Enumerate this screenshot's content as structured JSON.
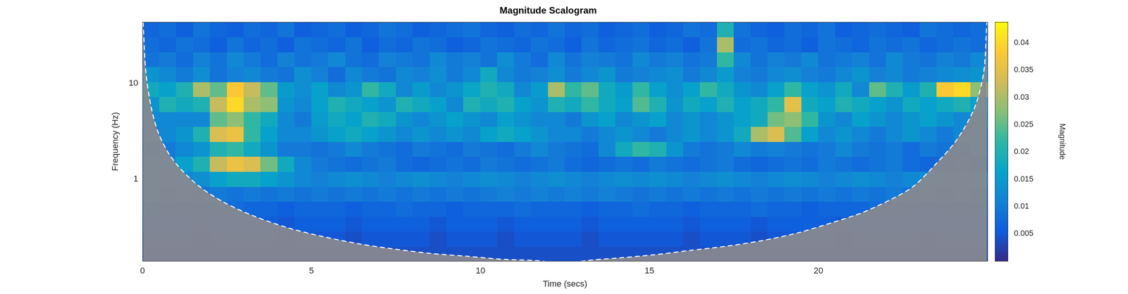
{
  "chart_data": {
    "type": "heatmap",
    "title": "Magnitude Scalogram",
    "x_label": "Time (secs)",
    "y_label": "Frequency (Hz)",
    "xlim": [
      0,
      25
    ],
    "xticks": [
      0,
      5,
      10,
      15,
      20
    ],
    "ylim": [
      0.139,
      43.8
    ],
    "yticks": [
      1,
      10
    ],
    "log": "y",
    "grid": false,
    "x_edges": [
      0,
      0.5,
      1,
      1.5,
      2,
      2.5,
      3,
      3.5,
      4,
      4.5,
      5,
      5.5,
      6,
      6.5,
      7,
      7.5,
      8,
      8.5,
      9,
      9.5,
      10,
      10.5,
      11,
      11.5,
      12,
      12.5,
      13,
      13.5,
      14,
      14.5,
      15,
      15.5,
      16,
      16.5,
      17,
      17.5,
      18,
      18.5,
      19,
      19.5,
      20,
      20.5,
      21,
      21.5,
      22,
      22.5,
      23,
      23.5,
      24,
      24.5,
      25
    ],
    "y_edges": [
      0.139,
      0.199,
      0.285,
      0.409,
      0.586,
      0.839,
      1.202,
      1.723,
      2.468,
      3.536,
      5.066,
      7.258,
      10.4,
      14.9,
      21.35,
      30.58,
      43.8
    ],
    "cells": [
      [
        0.004,
        0.004,
        0.004,
        0.004,
        0.004,
        0.004,
        0.004,
        0.004,
        0.004,
        0.004,
        0.004,
        0.004,
        0.004,
        0.004,
        0.004,
        0.004,
        0.004,
        0.004,
        0.004,
        0.004,
        0.004,
        0.004,
        0.004,
        0.004,
        0.004,
        0.004,
        0.004,
        0.004,
        0.004,
        0.004,
        0.004,
        0.004,
        0.004,
        0.004,
        0.004,
        0.004,
        0.004,
        0.004,
        0.004,
        0.004,
        0.004,
        0.004,
        0.004,
        0.004,
        0.004,
        0.004,
        0.004,
        0.004,
        0.004,
        0.004
      ],
      [
        0.005,
        0.005,
        0.005,
        0.004,
        0.005,
        0.005,
        0.005,
        0.005,
        0.004,
        0.005,
        0.005,
        0.005,
        0.004,
        0.005,
        0.005,
        0.005,
        0.005,
        0.004,
        0.005,
        0.005,
        0.005,
        0.004,
        0.005,
        0.005,
        0.005,
        0.005,
        0.004,
        0.005,
        0.005,
        0.005,
        0.005,
        0.005,
        0.004,
        0.005,
        0.005,
        0.005,
        0.004,
        0.005,
        0.005,
        0.005,
        0.005,
        0.004,
        0.005,
        0.005,
        0.005,
        0.005,
        0.004,
        0.005,
        0.005,
        0.005
      ],
      [
        0.006,
        0.006,
        0.006,
        0.005,
        0.006,
        0.006,
        0.006,
        0.006,
        0.005,
        0.006,
        0.006,
        0.006,
        0.005,
        0.006,
        0.006,
        0.006,
        0.006,
        0.005,
        0.006,
        0.006,
        0.006,
        0.005,
        0.006,
        0.006,
        0.006,
        0.006,
        0.005,
        0.006,
        0.006,
        0.006,
        0.006,
        0.006,
        0.005,
        0.006,
        0.006,
        0.006,
        0.005,
        0.006,
        0.006,
        0.006,
        0.006,
        0.005,
        0.006,
        0.006,
        0.006,
        0.006,
        0.005,
        0.006,
        0.006,
        0.006
      ],
      [
        0.007,
        0.007,
        0.008,
        0.007,
        0.007,
        0.008,
        0.007,
        0.007,
        0.006,
        0.007,
        0.007,
        0.007,
        0.006,
        0.007,
        0.007,
        0.008,
        0.007,
        0.007,
        0.006,
        0.007,
        0.007,
        0.007,
        0.008,
        0.007,
        0.007,
        0.007,
        0.006,
        0.007,
        0.007,
        0.008,
        0.007,
        0.007,
        0.006,
        0.007,
        0.007,
        0.007,
        0.008,
        0.007,
        0.007,
        0.006,
        0.007,
        0.007,
        0.007,
        0.008,
        0.007,
        0.007,
        0.006,
        0.007,
        0.007,
        0.007
      ],
      [
        0.01,
        0.009,
        0.01,
        0.009,
        0.01,
        0.009,
        0.01,
        0.009,
        0.01,
        0.009,
        0.01,
        0.009,
        0.01,
        0.009,
        0.01,
        0.009,
        0.01,
        0.009,
        0.01,
        0.009,
        0.01,
        0.011,
        0.01,
        0.011,
        0.01,
        0.011,
        0.01,
        0.011,
        0.01,
        0.009,
        0.01,
        0.009,
        0.01,
        0.009,
        0.01,
        0.009,
        0.01,
        0.009,
        0.01,
        0.009,
        0.01,
        0.009,
        0.01,
        0.009,
        0.01,
        0.009,
        0.01,
        0.009,
        0.01,
        0.009
      ],
      [
        0.01,
        0.011,
        0.012,
        0.013,
        0.016,
        0.018,
        0.018,
        0.016,
        0.014,
        0.012,
        0.011,
        0.012,
        0.013,
        0.012,
        0.011,
        0.012,
        0.013,
        0.012,
        0.011,
        0.012,
        0.013,
        0.012,
        0.011,
        0.012,
        0.013,
        0.012,
        0.011,
        0.012,
        0.013,
        0.012,
        0.013,
        0.012,
        0.011,
        0.012,
        0.013,
        0.012,
        0.011,
        0.012,
        0.013,
        0.012,
        0.011,
        0.012,
        0.013,
        0.012,
        0.011,
        0.012,
        0.013,
        0.012,
        0.011,
        0.012
      ],
      [
        0.01,
        0.012,
        0.016,
        0.02,
        0.032,
        0.036,
        0.034,
        0.026,
        0.018,
        0.012,
        0.01,
        0.009,
        0.008,
        0.009,
        0.01,
        0.008,
        0.007,
        0.008,
        0.009,
        0.008,
        0.01,
        0.009,
        0.008,
        0.009,
        0.01,
        0.008,
        0.007,
        0.008,
        0.009,
        0.008,
        0.01,
        0.009,
        0.008,
        0.009,
        0.01,
        0.008,
        0.007,
        0.008,
        0.009,
        0.008,
        0.01,
        0.009,
        0.008,
        0.009,
        0.01,
        0.008,
        0.007,
        0.008,
        0.009,
        0.008
      ],
      [
        0.008,
        0.01,
        0.012,
        0.014,
        0.02,
        0.022,
        0.018,
        0.014,
        0.01,
        0.01,
        0.009,
        0.01,
        0.012,
        0.01,
        0.009,
        0.008,
        0.01,
        0.009,
        0.008,
        0.01,
        0.009,
        0.008,
        0.01,
        0.012,
        0.01,
        0.009,
        0.008,
        0.012,
        0.018,
        0.022,
        0.02,
        0.014,
        0.01,
        0.009,
        0.01,
        0.012,
        0.01,
        0.011,
        0.01,
        0.009,
        0.01,
        0.012,
        0.01,
        0.009,
        0.01,
        0.008,
        0.01,
        0.009,
        0.008,
        0.01
      ],
      [
        0.01,
        0.012,
        0.014,
        0.02,
        0.034,
        0.036,
        0.022,
        0.016,
        0.012,
        0.012,
        0.014,
        0.016,
        0.018,
        0.016,
        0.014,
        0.012,
        0.014,
        0.012,
        0.014,
        0.012,
        0.016,
        0.018,
        0.016,
        0.014,
        0.012,
        0.012,
        0.01,
        0.012,
        0.014,
        0.012,
        0.01,
        0.012,
        0.014,
        0.012,
        0.014,
        0.018,
        0.03,
        0.034,
        0.024,
        0.016,
        0.012,
        0.014,
        0.012,
        0.01,
        0.012,
        0.014,
        0.012,
        0.01,
        0.012,
        0.01
      ],
      [
        0.012,
        0.012,
        0.012,
        0.012,
        0.025,
        0.028,
        0.022,
        0.018,
        0.012,
        0.01,
        0.015,
        0.018,
        0.016,
        0.02,
        0.018,
        0.014,
        0.012,
        0.014,
        0.016,
        0.014,
        0.012,
        0.016,
        0.014,
        0.012,
        0.012,
        0.01,
        0.014,
        0.016,
        0.012,
        0.014,
        0.016,
        0.012,
        0.014,
        0.012,
        0.014,
        0.016,
        0.018,
        0.026,
        0.028,
        0.022,
        0.014,
        0.012,
        0.016,
        0.014,
        0.012,
        0.014,
        0.016,
        0.014,
        0.012,
        0.014
      ],
      [
        0.014,
        0.02,
        0.018,
        0.02,
        0.032,
        0.04,
        0.03,
        0.028,
        0.014,
        0.012,
        0.016,
        0.02,
        0.018,
        0.016,
        0.014,
        0.02,
        0.018,
        0.016,
        0.012,
        0.02,
        0.018,
        0.02,
        0.016,
        0.014,
        0.02,
        0.018,
        0.022,
        0.018,
        0.016,
        0.024,
        0.02,
        0.014,
        0.018,
        0.016,
        0.02,
        0.016,
        0.018,
        0.022,
        0.035,
        0.018,
        0.016,
        0.02,
        0.018,
        0.016,
        0.014,
        0.018,
        0.016,
        0.018,
        0.02,
        0.016
      ],
      [
        0.018,
        0.016,
        0.02,
        0.03,
        0.025,
        0.038,
        0.032,
        0.025,
        0.015,
        0.013,
        0.016,
        0.012,
        0.014,
        0.022,
        0.018,
        0.012,
        0.015,
        0.012,
        0.014,
        0.017,
        0.02,
        0.018,
        0.012,
        0.015,
        0.03,
        0.022,
        0.025,
        0.018,
        0.015,
        0.022,
        0.016,
        0.013,
        0.016,
        0.022,
        0.018,
        0.014,
        0.012,
        0.016,
        0.022,
        0.016,
        0.014,
        0.018,
        0.012,
        0.025,
        0.02,
        0.015,
        0.02,
        0.038,
        0.04,
        0.028
      ],
      [
        0.014,
        0.012,
        0.01,
        0.013,
        0.009,
        0.011,
        0.012,
        0.01,
        0.009,
        0.013,
        0.011,
        0.008,
        0.012,
        0.01,
        0.009,
        0.012,
        0.011,
        0.013,
        0.01,
        0.012,
        0.018,
        0.012,
        0.01,
        0.011,
        0.013,
        0.01,
        0.012,
        0.014,
        0.01,
        0.011,
        0.012,
        0.013,
        0.01,
        0.012,
        0.015,
        0.011,
        0.01,
        0.012,
        0.013,
        0.011,
        0.01,
        0.012,
        0.014,
        0.011,
        0.012,
        0.01,
        0.011,
        0.012,
        0.013,
        0.014
      ],
      [
        0.009,
        0.01,
        0.008,
        0.011,
        0.009,
        0.012,
        0.01,
        0.008,
        0.011,
        0.009,
        0.01,
        0.012,
        0.009,
        0.008,
        0.011,
        0.01,
        0.009,
        0.012,
        0.01,
        0.011,
        0.009,
        0.013,
        0.01,
        0.008,
        0.012,
        0.009,
        0.011,
        0.01,
        0.009,
        0.012,
        0.01,
        0.011,
        0.009,
        0.01,
        0.022,
        0.012,
        0.009,
        0.011,
        0.01,
        0.012,
        0.009,
        0.01,
        0.011,
        0.009,
        0.012,
        0.01,
        0.009,
        0.011,
        0.01,
        0.012
      ],
      [
        0.008,
        0.007,
        0.009,
        0.008,
        0.006,
        0.009,
        0.007,
        0.008,
        0.006,
        0.009,
        0.008,
        0.007,
        0.009,
        0.006,
        0.008,
        0.007,
        0.009,
        0.008,
        0.006,
        0.007,
        0.009,
        0.008,
        0.007,
        0.009,
        0.008,
        0.006,
        0.009,
        0.007,
        0.008,
        0.009,
        0.007,
        0.008,
        0.006,
        0.009,
        0.03,
        0.008,
        0.009,
        0.007,
        0.008,
        0.006,
        0.009,
        0.008,
        0.007,
        0.009,
        0.008,
        0.009,
        0.007,
        0.008,
        0.009,
        0.008
      ],
      [
        0.007,
        0.008,
        0.006,
        0.009,
        0.007,
        0.006,
        0.008,
        0.007,
        0.009,
        0.006,
        0.007,
        0.008,
        0.006,
        0.007,
        0.009,
        0.008,
        0.006,
        0.007,
        0.008,
        0.009,
        0.007,
        0.006,
        0.008,
        0.007,
        0.009,
        0.007,
        0.008,
        0.006,
        0.007,
        0.008,
        0.006,
        0.007,
        0.009,
        0.008,
        0.02,
        0.009,
        0.007,
        0.006,
        0.008,
        0.007,
        0.009,
        0.006,
        0.007,
        0.008,
        0.007,
        0.006,
        0.009,
        0.008,
        0.007,
        0.008
      ]
    ],
    "colorbar": {
      "label": "Magnitude",
      "range": [
        0,
        0.0438
      ],
      "ticks": [
        0.005,
        0.01,
        0.015,
        0.02,
        0.025,
        0.03,
        0.035,
        0.04
      ]
    },
    "cone_of_influence": {
      "x": [
        0.02,
        0.1,
        0.26,
        0.47,
        0.79,
        1.21,
        1.74,
        2.38,
        3.23,
        4.3,
        5.36,
        6.43,
        7.49,
        8.55,
        9.62,
        10.68,
        11.85,
        12.45,
        13.02,
        14.09,
        15.15,
        16.21,
        17.28,
        18.34,
        19.4,
        20.47,
        21.32,
        22.17,
        22.81,
        23.45,
        24.09,
        24.62,
        24.89,
        24.98
      ],
      "y": [
        43.8,
        13.2,
        5.6,
        3.05,
        1.82,
        1.19,
        0.81,
        0.58,
        0.42,
        0.31,
        0.25,
        0.21,
        0.185,
        0.167,
        0.156,
        0.145,
        0.139,
        0.125,
        0.139,
        0.15,
        0.162,
        0.18,
        0.199,
        0.228,
        0.275,
        0.357,
        0.45,
        0.62,
        0.84,
        1.41,
        2.57,
        5.6,
        13.2,
        43.8
      ],
      "color": "#ffffff",
      "line_style": "dashed"
    }
  }
}
